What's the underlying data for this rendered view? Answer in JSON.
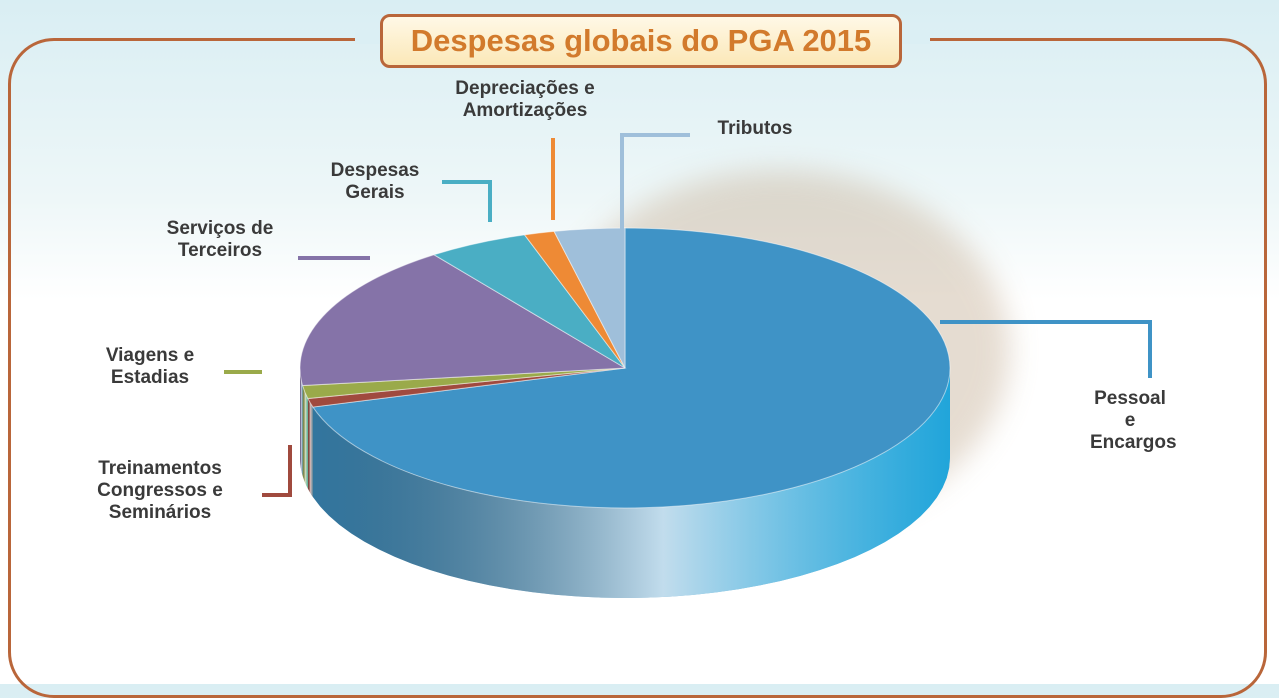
{
  "chart_data": {
    "type": "pie3d",
    "title": "Despesas globais do PGA 2015",
    "categories": [
      "Pessoal e Encargos",
      "Treinamentos Congressos e Seminários",
      "Viagens e Estadias",
      "Serviços de Terceiros",
      "Despesas Gerais",
      "Depreciações e Amortizações",
      "Tributos"
    ],
    "values": [
      70.5,
      1,
      1.5,
      17,
      5,
      1.5,
      3.5
    ],
    "colors": [
      "#3f93c6",
      "#a04a3e",
      "#9aaa4a",
      "#8573a8",
      "#4aaec4",
      "#ee8a35",
      "#9fbfda"
    ]
  }
}
